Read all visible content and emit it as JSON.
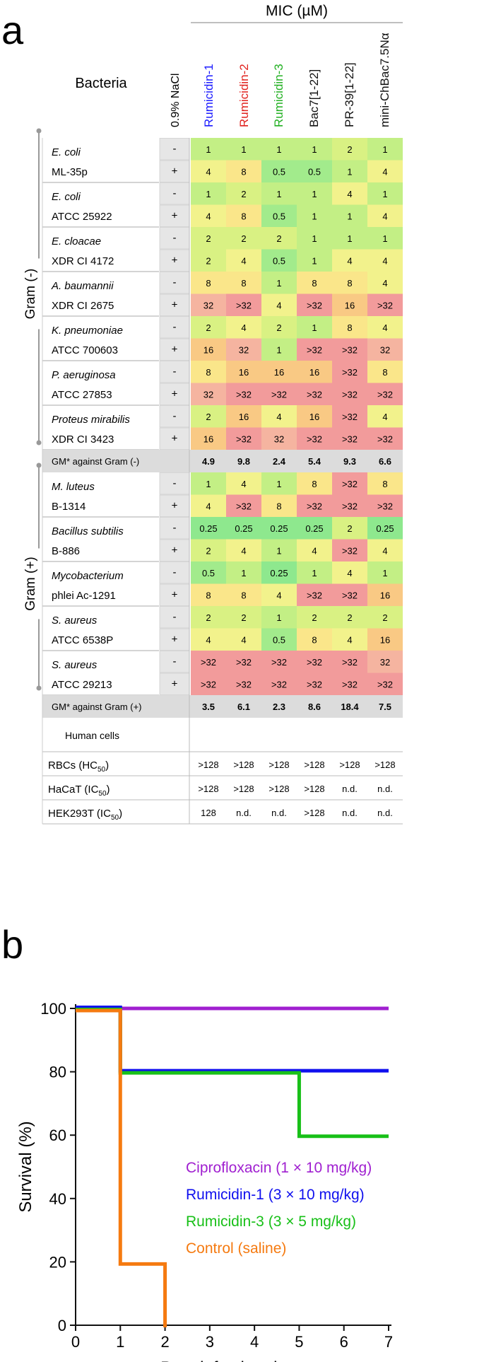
{
  "panel_a": {
    "letter": "a",
    "mic_header": "MIC (µM)",
    "bacteria_header": "Bacteria",
    "nacl_header": "0.9% NaCl",
    "peptides": [
      {
        "name": "Rumicidin-1",
        "color": "#1a1aff"
      },
      {
        "name": "Rumicidin-2",
        "color": "#e0201c"
      },
      {
        "name": "Rumicidin-3",
        "color": "#22b022"
      },
      {
        "name": "Bac7[1-22]",
        "color": "#111111"
      },
      {
        "name": "PR-39[1-22]",
        "color": "#111111"
      },
      {
        "name": "mini-ChBac7.5Nα",
        "color": "#111111"
      }
    ],
    "gram_neg_label": "Gram (-)",
    "gram_pos_label": "Gram (+)",
    "gram_neg": [
      {
        "species": "E. coli",
        "strain": "ML-35p",
        "minus": [
          "1",
          "1",
          "1",
          "1",
          "2",
          "1"
        ],
        "plus": [
          "4",
          "8",
          "0.5",
          "0.5",
          "1",
          "4"
        ]
      },
      {
        "species": "E. coli",
        "strain": "ATCC 25922",
        "minus": [
          "1",
          "2",
          "1",
          "1",
          "4",
          "1"
        ],
        "plus": [
          "4",
          "8",
          "0.5",
          "1",
          "1",
          "4"
        ]
      },
      {
        "species": "E. cloacae",
        "strain": "XDR CI 4172",
        "minus": [
          "2",
          "2",
          "2",
          "1",
          "1",
          "1"
        ],
        "plus": [
          "2",
          "4",
          "0.5",
          "1",
          "4",
          "4"
        ]
      },
      {
        "species": "A. baumannii",
        "strain": "XDR CI 2675",
        "minus": [
          "8",
          "8",
          "1",
          "8",
          "8",
          "4"
        ],
        "plus": [
          "32",
          ">32",
          "4",
          ">32",
          "16",
          ">32"
        ]
      },
      {
        "species": "K. pneumoniae",
        "strain": "ATCC 700603",
        "minus": [
          "2",
          "4",
          "2",
          "1",
          "8",
          "4"
        ],
        "plus": [
          "16",
          "32",
          "1",
          ">32",
          ">32",
          "32"
        ]
      },
      {
        "species": "P. aeruginosa",
        "strain": "ATCC 27853",
        "minus": [
          "8",
          "16",
          "16",
          "16",
          ">32",
          "8"
        ],
        "plus": [
          "32",
          ">32",
          ">32",
          ">32",
          ">32",
          ">32"
        ]
      },
      {
        "species": "Proteus mirabilis",
        "strain": "XDR CI 3423",
        "minus": [
          "2",
          "16",
          "4",
          "16",
          ">32",
          "4"
        ],
        "plus": [
          "16",
          ">32",
          "32",
          ">32",
          ">32",
          ">32"
        ]
      }
    ],
    "gm_neg": {
      "label": "GM* against Gram (-)",
      "values": [
        "4.9",
        "9.8",
        "2.4",
        "5.4",
        "9.3",
        "6.6"
      ]
    },
    "gram_pos": [
      {
        "species": "M. luteus",
        "strain": "B-1314",
        "minus": [
          "1",
          "4",
          "1",
          "8",
          ">32",
          "8"
        ],
        "plus": [
          "4",
          ">32",
          "8",
          ">32",
          ">32",
          ">32"
        ]
      },
      {
        "species": "Bacillus subtilis",
        "strain": "B-886",
        "minus": [
          "0.25",
          "0.25",
          "0.25",
          "0.25",
          "2",
          "0.25"
        ],
        "plus": [
          "2",
          "4",
          "1",
          "4",
          ">32",
          "4"
        ]
      },
      {
        "species": "Mycobacterium",
        "strain": "phlei Ac-1291",
        "minus": [
          "0.5",
          "1",
          "0.25",
          "1",
          "4",
          "1"
        ],
        "plus": [
          "8",
          "8",
          "4",
          ">32",
          ">32",
          "16"
        ]
      },
      {
        "species": "S. aureus",
        "strain": "ATCC 6538P",
        "minus": [
          "2",
          "2",
          "1",
          "2",
          "2",
          "2"
        ],
        "plus": [
          "4",
          "4",
          "0.5",
          "8",
          "4",
          "16"
        ]
      },
      {
        "species": "S. aureus",
        "strain": "ATCC 29213",
        "minus": [
          ">32",
          ">32",
          ">32",
          ">32",
          ">32",
          "32"
        ],
        "plus": [
          ">32",
          ">32",
          ">32",
          ">32",
          ">32",
          ">32"
        ]
      }
    ],
    "gm_pos": {
      "label": "GM* against Gram (+)",
      "values": [
        "3.5",
        "6.1",
        "2.3",
        "8.6",
        "18.4",
        "7.5"
      ]
    },
    "human_cells_label": "Human cells",
    "human_rows": [
      {
        "name": "RBCs (HC",
        "sub": "50",
        "tail": ")",
        "values": [
          ">128",
          ">128",
          ">128",
          ">128",
          ">128",
          ">128"
        ]
      },
      {
        "name": "HaCaT (IC",
        "sub": "50",
        "tail": ")",
        "values": [
          ">128",
          ">128",
          ">128",
          ">128",
          "n.d.",
          "n.d."
        ]
      },
      {
        "name": "HEK293T (IC",
        "sub": "50",
        "tail": ")",
        "values": [
          "128",
          "n.d.",
          "n.d.",
          ">128",
          "n.d.",
          "n.d."
        ]
      }
    ],
    "cell_colors": {
      "0.25": "#8ee88e",
      "0.5": "#a2eb8c",
      "1": "#c3ef85",
      "2": "#d9f183",
      "4": "#f2f28c",
      "8": "#fae68a",
      "16": "#f9c984",
      "32": "#f5b4a0",
      ">32": "#f29b9b",
      "gm": "#dcdcdc",
      "nacl": "#e6e6e6"
    }
  },
  "chart_data": {
    "type": "line",
    "panel_letter": "b",
    "xlabel": "Post-infection days",
    "ylabel": "Survival (%)",
    "xlim": [
      0,
      7
    ],
    "ylim": [
      0,
      100
    ],
    "xticks": [
      "0",
      "1",
      "2",
      "3",
      "4",
      "5",
      "6",
      "7"
    ],
    "yticks": [
      "0",
      "20",
      "40",
      "60",
      "80",
      "100"
    ],
    "step": true,
    "legend_placement": "lower-right",
    "series": [
      {
        "name": "Ciprofloxacin (1 × 10 mg/kg)",
        "color": "#a020d0",
        "x": [
          0,
          7
        ],
        "y": [
          100,
          100
        ]
      },
      {
        "name": "Rumicidin-1 (3 × 10 mg/kg)",
        "color": "#1010ee",
        "x": [
          0,
          1,
          7
        ],
        "y": [
          100,
          80,
          80
        ]
      },
      {
        "name": "Rumicidin-3 (3 × 5 mg/kg)",
        "color": "#18c018",
        "x": [
          0,
          1,
          5,
          7
        ],
        "y": [
          100,
          80,
          60,
          60
        ]
      },
      {
        "name": "Control (saline)",
        "color": "#f57a10",
        "x": [
          0,
          1,
          2
        ],
        "y": [
          100,
          20,
          0
        ]
      }
    ]
  }
}
